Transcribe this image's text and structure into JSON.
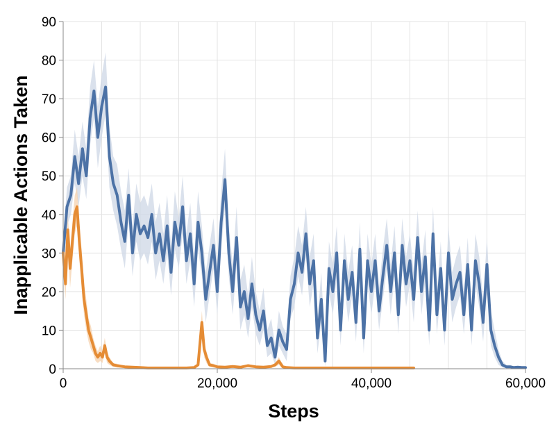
{
  "chart_data": {
    "type": "line",
    "xlabel": "Steps",
    "ylabel": "Inapplicable Actions Taken",
    "xlim": [
      0,
      60000
    ],
    "ylim": [
      0,
      90
    ],
    "x_ticks": [
      0,
      20000,
      40000,
      60000
    ],
    "x_tick_labels": [
      "0",
      "20,000",
      "40,000",
      "60,000"
    ],
    "y_ticks": [
      0,
      10,
      20,
      30,
      40,
      50,
      60,
      70,
      80,
      90
    ],
    "y_tick_labels": [
      "0",
      "10",
      "20",
      "30",
      "40",
      "50",
      "60",
      "70",
      "80",
      "90"
    ],
    "grid": true,
    "legend": "none",
    "series": [
      {
        "color": "#4c72a6",
        "band_color": "#cdd7e5",
        "x": [
          0,
          500,
          1000,
          1500,
          2000,
          2500,
          3000,
          3500,
          4000,
          4500,
          5000,
          5500,
          6000,
          6500,
          7000,
          7500,
          8000,
          8500,
          9000,
          9500,
          10000,
          10500,
          11000,
          11500,
          12000,
          12500,
          13000,
          13500,
          14000,
          14500,
          15000,
          15500,
          16000,
          16500,
          17000,
          17500,
          18000,
          18500,
          19000,
          19500,
          20000,
          20500,
          21000,
          21500,
          22000,
          22500,
          23000,
          23500,
          24000,
          24500,
          25000,
          25500,
          26000,
          26500,
          27000,
          27500,
          28000,
          28500,
          29000,
          29500,
          30000,
          30500,
          31000,
          31500,
          32000,
          32500,
          33000,
          33500,
          34000,
          34500,
          35000,
          35500,
          36000,
          36500,
          37000,
          37500,
          38000,
          38500,
          39000,
          39500,
          40000,
          40500,
          41000,
          41500,
          42000,
          42500,
          43000,
          43500,
          44000,
          44500,
          45000,
          45500,
          46000,
          46500,
          47000,
          47500,
          48000,
          48500,
          49000,
          49500,
          50000,
          50500,
          51000,
          51500,
          52000,
          52500,
          53000,
          53500,
          54000,
          54500,
          55000,
          55500,
          56000,
          56500,
          57000,
          57500,
          58000,
          58500,
          59000,
          59500,
          60000
        ],
        "values": [
          30,
          42,
          45,
          55,
          48,
          57,
          50,
          65,
          72,
          60,
          68,
          73,
          55,
          48,
          45,
          38,
          33,
          45,
          30,
          40,
          35,
          37,
          34,
          40,
          30,
          35,
          28,
          37,
          25,
          38,
          32,
          42,
          28,
          35,
          22,
          38,
          30,
          18,
          25,
          32,
          20,
          38,
          49,
          30,
          20,
          34,
          16,
          20,
          13,
          22,
          14,
          10,
          15,
          6,
          8,
          3,
          10,
          7,
          5,
          18,
          22,
          30,
          25,
          35,
          22,
          28,
          8,
          18,
          2,
          26,
          20,
          30,
          10,
          28,
          18,
          25,
          12,
          31,
          8,
          28,
          20,
          28,
          15,
          24,
          32,
          20,
          30,
          14,
          32,
          22,
          28,
          18,
          34,
          20,
          29,
          10,
          35,
          14,
          26,
          10,
          30,
          18,
          22,
          25,
          14,
          27,
          10,
          28,
          22,
          12,
          27,
          10,
          6,
          3,
          1,
          0.5,
          0.5,
          0.3,
          0.4,
          0.3,
          0.3
        ],
        "band_lower": [
          26,
          37,
          40,
          48,
          42,
          50,
          44,
          58,
          65,
          52,
          60,
          66,
          47,
          41,
          37,
          31,
          26,
          38,
          24,
          33,
          28,
          30,
          27,
          33,
          23,
          28,
          22,
          30,
          19,
          31,
          26,
          35,
          22,
          28,
          16,
          31,
          24,
          12,
          19,
          26,
          14,
          31,
          42,
          24,
          14,
          27,
          10,
          14,
          8,
          16,
          9,
          6,
          10,
          3,
          4,
          1,
          6,
          4,
          2,
          13,
          16,
          24,
          19,
          29,
          16,
          22,
          4,
          12,
          0.5,
          20,
          14,
          24,
          6,
          22,
          12,
          19,
          7,
          25,
          4,
          22,
          14,
          22,
          10,
          18,
          26,
          14,
          24,
          9,
          26,
          16,
          22,
          12,
          28,
          14,
          23,
          6,
          29,
          9,
          20,
          6,
          24,
          12,
          16,
          19,
          9,
          21,
          6,
          22,
          16,
          7,
          21,
          6,
          3,
          1,
          0.3,
          0.2,
          0.2,
          0.1,
          0.2,
          0.1,
          0.1
        ],
        "band_upper": [
          34,
          47,
          50,
          62,
          55,
          64,
          57,
          73,
          80,
          68,
          76,
          82,
          63,
          55,
          53,
          46,
          41,
          52,
          37,
          48,
          43,
          45,
          42,
          48,
          38,
          43,
          35,
          45,
          32,
          46,
          39,
          50,
          35,
          43,
          29,
          46,
          37,
          25,
          32,
          39,
          27,
          46,
          57,
          37,
          27,
          42,
          23,
          27,
          19,
          29,
          20,
          15,
          21,
          10,
          13,
          6,
          15,
          11,
          9,
          24,
          29,
          37,
          32,
          42,
          29,
          35,
          13,
          25,
          4,
          33,
          27,
          37,
          15,
          35,
          25,
          32,
          18,
          38,
          13,
          35,
          27,
          35,
          21,
          31,
          39,
          27,
          37,
          20,
          39,
          29,
          35,
          25,
          41,
          27,
          36,
          15,
          42,
          20,
          33,
          15,
          37,
          25,
          29,
          32,
          20,
          34,
          15,
          35,
          29,
          18,
          34,
          15,
          10,
          5,
          2,
          1,
          1,
          0.6,
          0.7,
          0.5,
          0.5
        ]
      },
      {
        "color": "#e58c35",
        "band_color": "#f5d2ad",
        "x": [
          0,
          300,
          600,
          900,
          1200,
          1500,
          1800,
          2100,
          2400,
          2700,
          3000,
          3300,
          3600,
          3900,
          4200,
          4500,
          4800,
          5100,
          5400,
          5700,
          6000,
          6500,
          7000,
          8000,
          9000,
          10000,
          11000,
          12000,
          13000,
          14000,
          15000,
          16000,
          17000,
          17500,
          18000,
          18300,
          18600,
          19000,
          19500,
          20000,
          21000,
          22000,
          23000,
          24000,
          25000,
          26000,
          27000,
          27500,
          28000,
          28500,
          29000,
          30000,
          32000,
          34000,
          36000,
          38000,
          40000,
          42000,
          44000,
          45500
        ],
        "values": [
          30,
          22,
          36,
          26,
          33,
          40,
          42,
          33,
          26,
          18,
          14,
          10,
          8,
          6,
          4,
          3,
          4,
          3,
          6,
          3,
          2,
          1,
          0.8,
          0.5,
          0.4,
          0.3,
          0.2,
          0.2,
          0.2,
          0.2,
          0.2,
          0.2,
          0.3,
          1,
          12,
          5,
          3,
          1,
          0.8,
          0.5,
          0.4,
          0.6,
          0.4,
          0.8,
          0.5,
          0.4,
          0.6,
          1,
          2,
          0.5,
          0.3,
          0.2,
          0.2,
          0.2,
          0.2,
          0.2,
          0.2,
          0.2,
          0.2,
          0.2
        ],
        "band_lower": [
          26,
          18,
          31,
          21,
          28,
          35,
          37,
          28,
          21,
          14,
          10,
          7,
          5,
          4,
          2,
          1.5,
          2,
          1.5,
          4,
          1.5,
          1,
          0.5,
          0.3,
          0.2,
          0.1,
          0.1,
          0.1,
          0.1,
          0.1,
          0.1,
          0.1,
          0.1,
          0.1,
          0.5,
          9,
          3,
          1.5,
          0.5,
          0.3,
          0.2,
          0.1,
          0.3,
          0.1,
          0.4,
          0.2,
          0.1,
          0.3,
          0.5,
          1,
          0.2,
          0.1,
          0.1,
          0.1,
          0.1,
          0.1,
          0.1,
          0.1,
          0.1,
          0.1,
          0.1
        ],
        "band_upper": [
          34,
          26,
          40,
          31,
          38,
          45,
          47,
          38,
          31,
          22,
          18,
          13,
          11,
          8,
          6,
          4.5,
          6,
          4.5,
          8,
          4.5,
          3,
          1.5,
          1.3,
          0.8,
          0.7,
          0.5,
          0.3,
          0.3,
          0.3,
          0.3,
          0.3,
          0.3,
          0.5,
          1.5,
          15,
          7,
          4.5,
          1.5,
          1.3,
          0.8,
          0.7,
          0.9,
          0.7,
          1.2,
          0.8,
          0.7,
          0.9,
          1.5,
          3,
          0.8,
          0.5,
          0.3,
          0.3,
          0.3,
          0.3,
          0.3,
          0.3,
          0.3,
          0.3,
          0.3
        ]
      }
    ]
  }
}
